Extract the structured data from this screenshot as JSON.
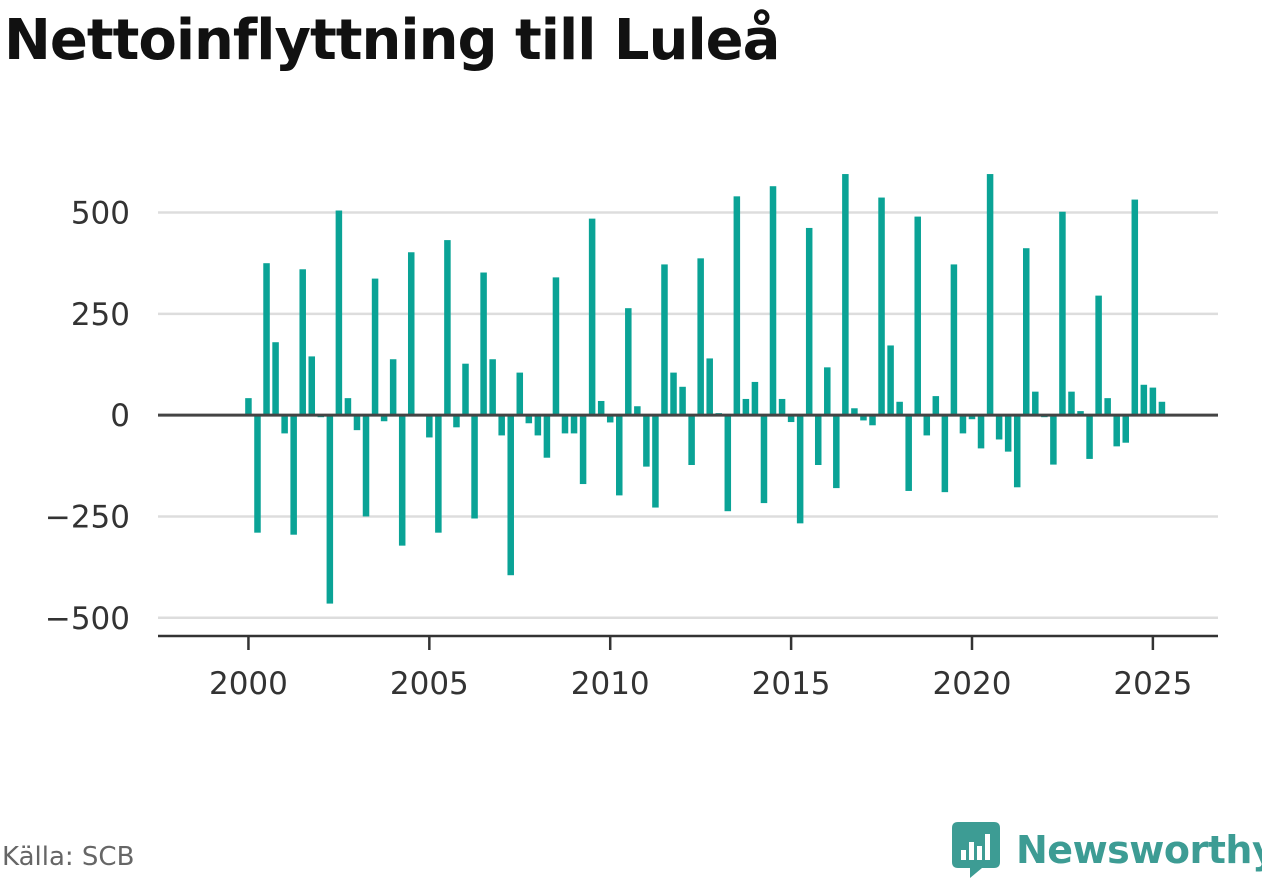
{
  "chart_data": {
    "type": "bar",
    "title": "Nettoinflyttning till Luleå",
    "source": "Källa: SCB",
    "brand": "Newsworthy",
    "bar_color": "#0aa396",
    "zero_line_color": "#444444",
    "grid": true,
    "xlim": [
      1997.5,
      2026.8
    ],
    "ylim": [
      -545,
      605
    ],
    "x_ticks": [
      2000,
      2005,
      2010,
      2015,
      2020,
      2025
    ],
    "y_ticks": [
      500,
      250,
      0,
      -250,
      -500
    ],
    "y_tick_labels": [
      "500",
      "250",
      "0",
      "−250",
      "−500"
    ],
    "start_year": 2000,
    "periods_per_year": 4,
    "values": [
      42,
      -290,
      375,
      180,
      -45,
      -295,
      360,
      145,
      -5,
      -465,
      505,
      42,
      -37,
      -250,
      337,
      -15,
      138,
      -322,
      402,
      -2,
      -55,
      -290,
      432,
      -30,
      127,
      -255,
      352,
      138,
      -50,
      -395,
      105,
      -20,
      -50,
      -105,
      340,
      -45,
      -45,
      -170,
      485,
      35,
      -18,
      -198,
      264,
      22,
      -127,
      -228,
      372,
      105,
      70,
      -123,
      387,
      140,
      5,
      -237,
      540,
      40,
      82,
      -217,
      565,
      40,
      -17,
      -267,
      462,
      -123,
      118,
      -180,
      595,
      17,
      -13,
      -25,
      537,
      172,
      33,
      -187,
      490,
      -50,
      47,
      -190,
      372,
      -45,
      -10,
      -82,
      595,
      -60,
      -90,
      -178,
      412,
      58,
      -5,
      -122,
      502,
      58,
      10,
      -108,
      295,
      42,
      -77,
      -68,
      532,
      75,
      68,
      33
    ]
  }
}
